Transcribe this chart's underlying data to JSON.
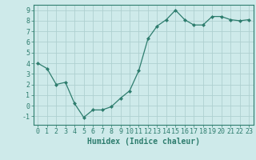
{
  "x": [
    0,
    1,
    2,
    3,
    4,
    5,
    6,
    7,
    8,
    9,
    10,
    11,
    12,
    13,
    14,
    15,
    16,
    17,
    18,
    19,
    20,
    21,
    22,
    23
  ],
  "y": [
    4.0,
    3.5,
    2.0,
    2.2,
    0.2,
    -1.1,
    -0.4,
    -0.4,
    -0.1,
    0.7,
    1.4,
    3.3,
    6.3,
    7.5,
    8.1,
    9.0,
    8.1,
    7.6,
    7.6,
    8.4,
    8.4,
    8.1,
    8.0,
    8.1
  ],
  "xlabel": "Humidex (Indice chaleur)",
  "ylim": [
    -1.8,
    9.5
  ],
  "xlim": [
    -0.5,
    23.5
  ],
  "yticks": [
    -1,
    0,
    1,
    2,
    3,
    4,
    5,
    6,
    7,
    8,
    9
  ],
  "xticks": [
    0,
    1,
    2,
    3,
    4,
    5,
    6,
    7,
    8,
    9,
    10,
    11,
    12,
    13,
    14,
    15,
    16,
    17,
    18,
    19,
    20,
    21,
    22,
    23
  ],
  "line_color": "#2e7d6e",
  "marker": "D",
  "marker_size": 2.0,
  "bg_color": "#ceeaea",
  "grid_color": "#aed0d0",
  "tick_color": "#2e7d6e",
  "label_color": "#2e7d6e",
  "xlabel_fontsize": 7.0,
  "tick_fontsize": 6.0,
  "linewidth": 0.9
}
